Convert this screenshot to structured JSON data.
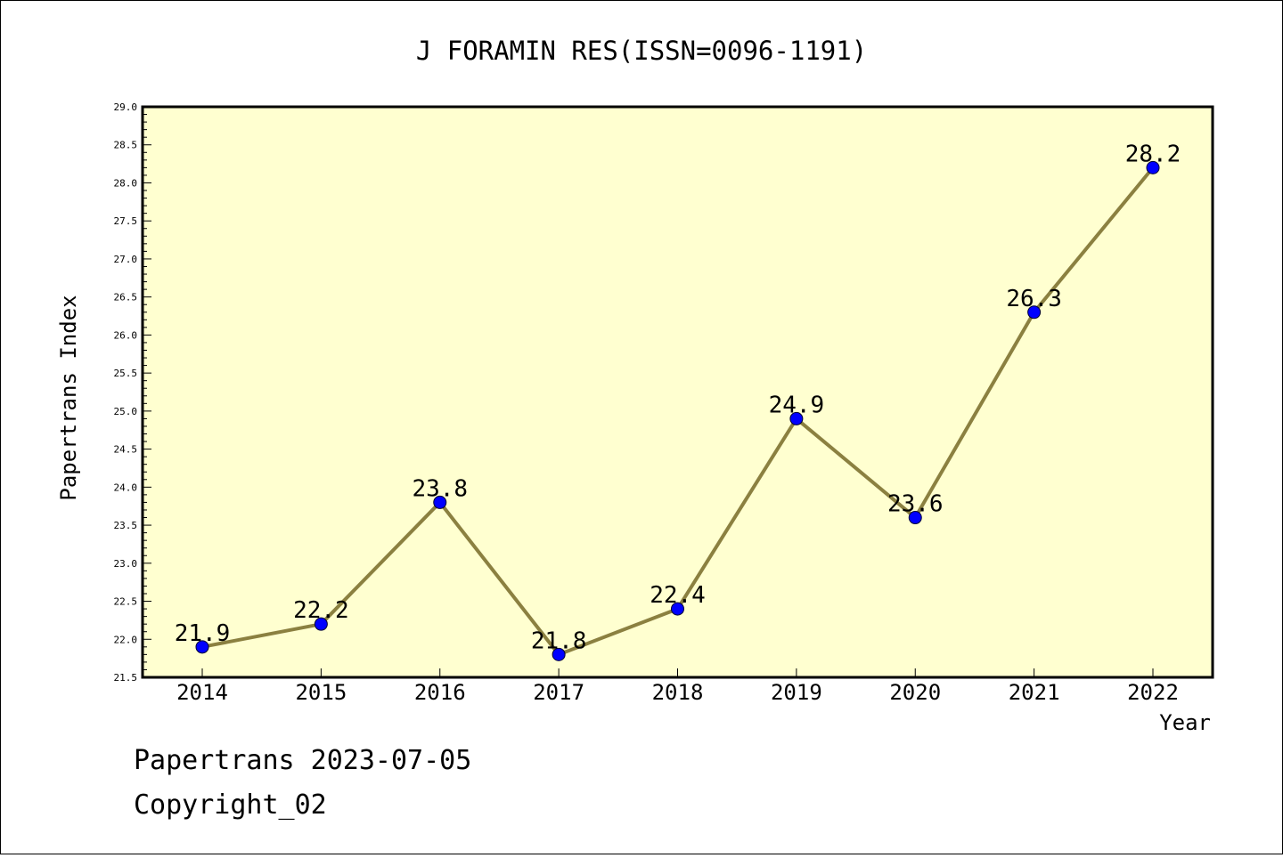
{
  "chart_data": {
    "type": "line",
    "title": "J FORAMIN RES(ISSN=0096-1191)",
    "xlabel": "Year",
    "ylabel": "Papertrans Index",
    "x": [
      "2014",
      "2015",
      "2016",
      "2017",
      "2018",
      "2019",
      "2020",
      "2021",
      "2022"
    ],
    "values": [
      21.9,
      22.2,
      23.8,
      21.8,
      22.4,
      24.9,
      23.6,
      26.3,
      28.2
    ],
    "data_labels": [
      "21.9",
      "22.2",
      "23.8",
      "21.8",
      "22.4",
      "24.9",
      "23.6",
      "26.3",
      "28.2"
    ],
    "ylim": [
      21.5,
      29.0
    ],
    "yticks": [
      "21.5",
      "22.0",
      "22.5",
      "23.0",
      "23.5",
      "24.0",
      "24.5",
      "25.0",
      "25.5",
      "26.0",
      "26.5",
      "27.0",
      "27.5",
      "28.0",
      "28.5",
      "29.0"
    ],
    "grid": false,
    "legend": "none",
    "colors": {
      "plot_background": "#ffffd0",
      "line": "#8b8040",
      "marker": "#0000ff"
    }
  },
  "footer": {
    "line1": "Papertrans 2023-07-05",
    "line2": "Copyright_02"
  }
}
